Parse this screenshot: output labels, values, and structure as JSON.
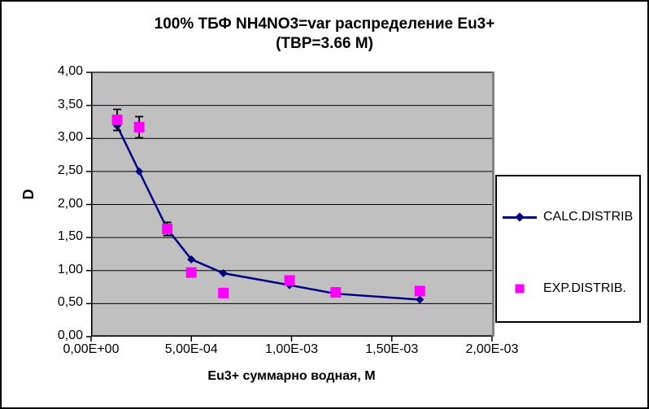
{
  "chart_data": {
    "type": "line",
    "title_line1": "100% ТБФ  NH4NO3=var распределение Eu3+",
    "title_line2": "(TBP=3.66 M)",
    "xlabel": "Eu3+ суммарно  водная, М",
    "ylabel": "D",
    "xlim": [
      0,
      0.002
    ],
    "ylim": [
      0,
      4
    ],
    "x_ticks": [
      "0,00E+00",
      "5,00E-04",
      "1,00E-03",
      "1,50E-03",
      "2,00E-03"
    ],
    "x_tick_values": [
      0,
      0.0005,
      0.001,
      0.0015,
      0.002
    ],
    "y_ticks": [
      "0,00",
      "0,50",
      "1,00",
      "1,50",
      "2,00",
      "2,50",
      "3,00",
      "3,50",
      "4,00"
    ],
    "y_tick_values": [
      0,
      0.5,
      1,
      1.5,
      2,
      2.5,
      3,
      3.5,
      4
    ],
    "grid": "horizontal",
    "plot_bg_color": "#C0C0C0",
    "gridline_color": "#000000",
    "axis_color": "#000000",
    "error_bar_color": "#000000",
    "legend_position": "right",
    "x": [
      0.00013,
      0.00024,
      0.00038,
      0.0005,
      0.00066,
      0.00099,
      0.00122,
      0.00164
    ],
    "series": [
      {
        "name": "CALC.DISTRIB",
        "marker": "diamond",
        "draw_line": true,
        "color": "#000080",
        "values": [
          3.19,
          2.5,
          1.63,
          1.17,
          0.96,
          0.78,
          0.65,
          0.56
        ]
      },
      {
        "name": "EXP.DISTRIB.",
        "marker": "square",
        "draw_line": false,
        "color": "#FF00FF",
        "values": [
          3.28,
          3.17,
          1.63,
          0.97,
          0.66,
          0.85,
          0.67,
          0.69
        ],
        "error_bars": [
          0.16,
          0.16,
          0.1,
          0,
          0,
          0,
          0,
          0
        ]
      }
    ]
  }
}
